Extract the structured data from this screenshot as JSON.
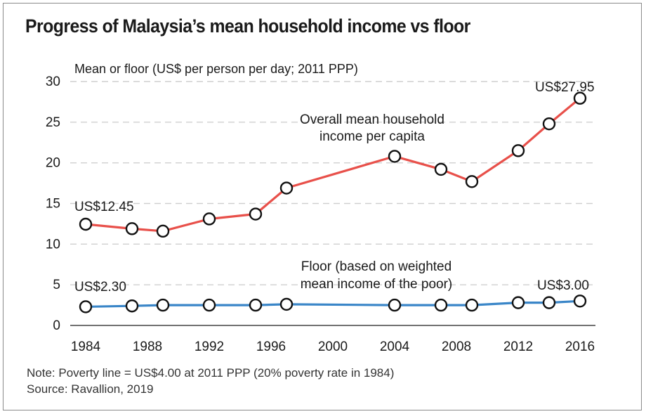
{
  "title": "Progress of Malaysia’s mean household income vs floor",
  "note": "Note: Poverty line = US$4.00 at 2011 PPP (20% poverty rate in 1984)",
  "source": "Source: Ravallion, 2019",
  "colors": {
    "mean_series": "#e8504a",
    "floor_series": "#3a86c8",
    "grid": "#cfcfcf",
    "marker_fill": "#ffffff",
    "marker_stroke": "#111111"
  },
  "chart_data": {
    "type": "line",
    "ylabel": "Mean or floor (US$ per person per day; 2011 PPP)",
    "xlabel": "",
    "xlim": [
      1983,
      2017
    ],
    "ylim": [
      0,
      30
    ],
    "xticks": [
      1984,
      1988,
      1992,
      1996,
      2000,
      2004,
      2008,
      2012,
      2016
    ],
    "yticks": [
      0,
      5,
      10,
      15,
      20,
      25,
      30
    ],
    "grid": "horizontal dashed",
    "series": [
      {
        "name": "Overall mean household income per capita",
        "color": "#e8504a",
        "x": [
          1984,
          1987,
          1989,
          1992,
          1995,
          1997,
          2004,
          2007,
          2009,
          2012,
          2014,
          2016
        ],
        "values": [
          12.45,
          11.9,
          11.6,
          13.1,
          13.7,
          16.9,
          20.8,
          19.2,
          17.7,
          21.5,
          24.8,
          27.95
        ]
      },
      {
        "name": "Floor (based on weighted mean income of the poor)",
        "color": "#3a86c8",
        "x": [
          1984,
          1987,
          1989,
          1992,
          1995,
          1997,
          2004,
          2007,
          2009,
          2012,
          2014,
          2016
        ],
        "values": [
          2.3,
          2.4,
          2.5,
          2.5,
          2.5,
          2.6,
          2.5,
          2.5,
          2.5,
          2.8,
          2.8,
          3.0
        ]
      }
    ],
    "annotations": [
      {
        "text": "US$12.45"
      },
      {
        "text": "US$2.30"
      },
      {
        "text": "US$27.95"
      },
      {
        "text": "US$3.00"
      },
      {
        "text": "Overall mean household"
      },
      {
        "text": "income per capita"
      },
      {
        "text": "Floor (based on weighted"
      },
      {
        "text": "mean income of the poor)"
      }
    ]
  }
}
